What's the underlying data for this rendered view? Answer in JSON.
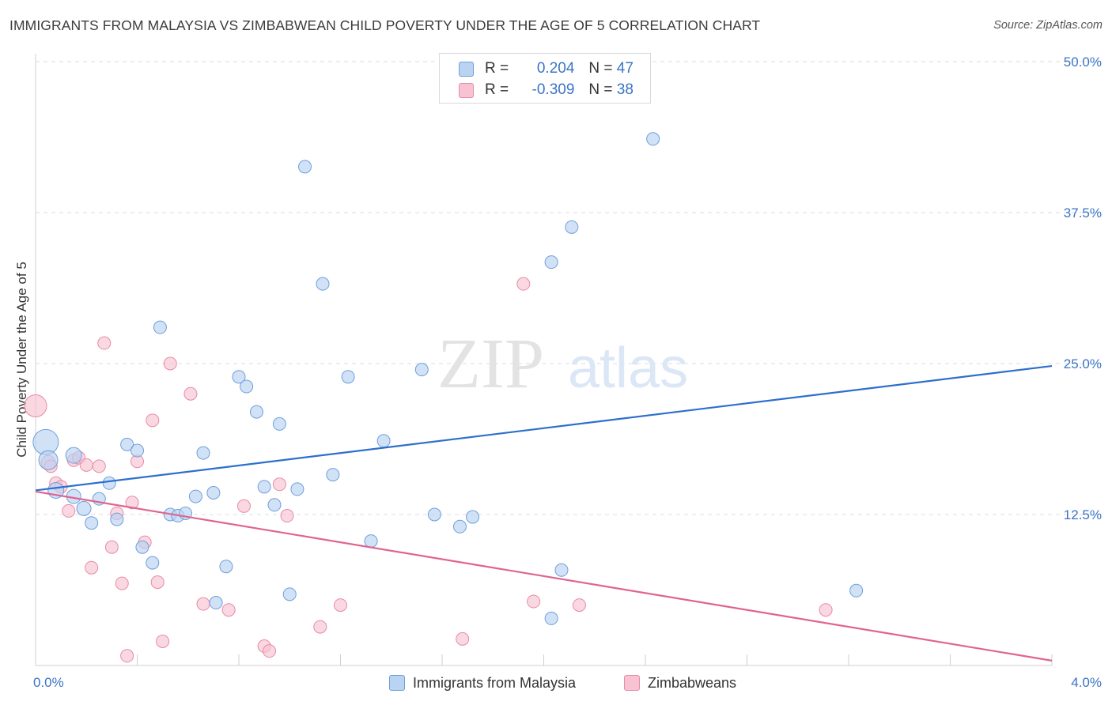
{
  "title": "IMMIGRANTS FROM MALAYSIA VS ZIMBABWEAN CHILD POVERTY UNDER THE AGE OF 5 CORRELATION CHART",
  "source": "Source: ZipAtlas.com",
  "watermark": {
    "zip": "ZIP",
    "atlas": "atlas"
  },
  "legend": {
    "r_label": "R =",
    "n_label": "N =",
    "series": [
      {
        "r": "0.204",
        "n": "47"
      },
      {
        "r": "-0.309",
        "n": "38"
      }
    ]
  },
  "colors": {
    "blue_fill": "#b9d3f3",
    "blue_stroke": "#6d9fdb",
    "blue_line": "#2d6fcc",
    "pink_fill": "#f7c3d3",
    "pink_stroke": "#e88aa8",
    "pink_line": "#e0648f",
    "grid": "#dcdcdc",
    "tick_text": "#3a74c4"
  },
  "chart_data": {
    "type": "scatter",
    "title": "IMMIGRANTS FROM MALAYSIA VS ZIMBABWEAN CHILD POVERTY UNDER THE AGE OF 5 CORRELATION CHART",
    "xlabel": "",
    "ylabel": "Child Poverty Under the Age of 5",
    "xlim": [
      0.0,
      4.0
    ],
    "ylim": [
      0.0,
      50.0
    ],
    "x_tick_labels": [
      "0.0%",
      "4.0%"
    ],
    "y_ticks": [
      12.5,
      25.0,
      37.5,
      50.0
    ],
    "y_tick_labels": [
      "12.5%",
      "25.0%",
      "37.5%",
      "50.0%"
    ],
    "legend_position": "bottom",
    "series": [
      {
        "name": "Immigrants from Malaysia",
        "r": 0.204,
        "n": 47,
        "trend": {
          "x": [
            0.0,
            4.0
          ],
          "y": [
            14.5,
            24.8
          ]
        },
        "points": [
          {
            "x": 0.04,
            "y": 18.5,
            "s": 16
          },
          {
            "x": 0.05,
            "y": 17.0,
            "s": 12
          },
          {
            "x": 0.08,
            "y": 14.5,
            "s": 10
          },
          {
            "x": 0.15,
            "y": 17.4,
            "s": 10
          },
          {
            "x": 0.15,
            "y": 14.0,
            "s": 9
          },
          {
            "x": 0.19,
            "y": 13.0,
            "s": 9
          },
          {
            "x": 0.22,
            "y": 11.8,
            "s": 8
          },
          {
            "x": 0.25,
            "y": 13.8,
            "s": 8
          },
          {
            "x": 0.29,
            "y": 15.1,
            "s": 8
          },
          {
            "x": 0.32,
            "y": 12.1,
            "s": 8
          },
          {
            "x": 0.36,
            "y": 18.3,
            "s": 8
          },
          {
            "x": 0.4,
            "y": 17.8,
            "s": 8
          },
          {
            "x": 0.42,
            "y": 9.8,
            "s": 8
          },
          {
            "x": 0.46,
            "y": 8.5,
            "s": 8
          },
          {
            "x": 0.49,
            "y": 28.0,
            "s": 8
          },
          {
            "x": 0.53,
            "y": 12.5,
            "s": 8
          },
          {
            "x": 0.56,
            "y": 12.4,
            "s": 8
          },
          {
            "x": 0.59,
            "y": 12.6,
            "s": 8
          },
          {
            "x": 0.63,
            "y": 14.0,
            "s": 8
          },
          {
            "x": 0.66,
            "y": 17.6,
            "s": 8
          },
          {
            "x": 0.7,
            "y": 14.3,
            "s": 8
          },
          {
            "x": 0.71,
            "y": 5.2,
            "s": 8
          },
          {
            "x": 0.75,
            "y": 8.2,
            "s": 8
          },
          {
            "x": 0.8,
            "y": 23.9,
            "s": 8
          },
          {
            "x": 0.83,
            "y": 23.1,
            "s": 8
          },
          {
            "x": 0.87,
            "y": 21.0,
            "s": 8
          },
          {
            "x": 0.9,
            "y": 14.8,
            "s": 8
          },
          {
            "x": 0.94,
            "y": 13.3,
            "s": 8
          },
          {
            "x": 0.96,
            "y": 20.0,
            "s": 8
          },
          {
            "x": 1.0,
            "y": 5.9,
            "s": 8
          },
          {
            "x": 1.03,
            "y": 14.6,
            "s": 8
          },
          {
            "x": 1.06,
            "y": 41.3,
            "s": 8
          },
          {
            "x": 1.13,
            "y": 31.6,
            "s": 8
          },
          {
            "x": 1.17,
            "y": 15.8,
            "s": 8
          },
          {
            "x": 1.23,
            "y": 23.9,
            "s": 8
          },
          {
            "x": 1.32,
            "y": 10.3,
            "s": 8
          },
          {
            "x": 1.37,
            "y": 18.6,
            "s": 8
          },
          {
            "x": 1.52,
            "y": 24.5,
            "s": 8
          },
          {
            "x": 1.57,
            "y": 12.5,
            "s": 8
          },
          {
            "x": 1.67,
            "y": 11.5,
            "s": 8
          },
          {
            "x": 1.72,
            "y": 12.3,
            "s": 8
          },
          {
            "x": 2.03,
            "y": 33.4,
            "s": 8
          },
          {
            "x": 2.07,
            "y": 7.9,
            "s": 8
          },
          {
            "x": 2.11,
            "y": 36.3,
            "s": 8
          },
          {
            "x": 2.03,
            "y": 3.9,
            "s": 8
          },
          {
            "x": 2.43,
            "y": 43.6,
            "s": 8
          },
          {
            "x": 3.23,
            "y": 6.2,
            "s": 8
          }
        ]
      },
      {
        "name": "Zimbabweans",
        "r": -0.309,
        "n": 38,
        "trend": {
          "x": [
            0.0,
            4.0
          ],
          "y": [
            14.4,
            0.4
          ]
        },
        "points": [
          {
            "x": 0.0,
            "y": 21.5,
            "s": 14
          },
          {
            "x": 0.05,
            "y": 16.8,
            "s": 9
          },
          {
            "x": 0.06,
            "y": 16.5,
            "s": 8
          },
          {
            "x": 0.08,
            "y": 15.1,
            "s": 8
          },
          {
            "x": 0.1,
            "y": 14.8,
            "s": 8
          },
          {
            "x": 0.13,
            "y": 12.8,
            "s": 8
          },
          {
            "x": 0.15,
            "y": 17.0,
            "s": 8
          },
          {
            "x": 0.17,
            "y": 17.2,
            "s": 8
          },
          {
            "x": 0.2,
            "y": 16.6,
            "s": 8
          },
          {
            "x": 0.22,
            "y": 8.1,
            "s": 8
          },
          {
            "x": 0.25,
            "y": 16.5,
            "s": 8
          },
          {
            "x": 0.27,
            "y": 26.7,
            "s": 8
          },
          {
            "x": 0.3,
            "y": 9.8,
            "s": 8
          },
          {
            "x": 0.32,
            "y": 12.6,
            "s": 8
          },
          {
            "x": 0.34,
            "y": 6.8,
            "s": 8
          },
          {
            "x": 0.36,
            "y": 0.8,
            "s": 8
          },
          {
            "x": 0.38,
            "y": 13.5,
            "s": 8
          },
          {
            "x": 0.4,
            "y": 16.9,
            "s": 8
          },
          {
            "x": 0.43,
            "y": 10.2,
            "s": 8
          },
          {
            "x": 0.46,
            "y": 20.3,
            "s": 8
          },
          {
            "x": 0.48,
            "y": 6.9,
            "s": 8
          },
          {
            "x": 0.5,
            "y": 2.0,
            "s": 8
          },
          {
            "x": 0.53,
            "y": 25.0,
            "s": 8
          },
          {
            "x": 0.61,
            "y": 22.5,
            "s": 8
          },
          {
            "x": 0.66,
            "y": 5.1,
            "s": 8
          },
          {
            "x": 0.76,
            "y": 4.6,
            "s": 8
          },
          {
            "x": 0.82,
            "y": 13.2,
            "s": 8
          },
          {
            "x": 0.9,
            "y": 1.6,
            "s": 8
          },
          {
            "x": 0.92,
            "y": 1.2,
            "s": 8
          },
          {
            "x": 0.96,
            "y": 15.0,
            "s": 8
          },
          {
            "x": 0.99,
            "y": 12.4,
            "s": 8
          },
          {
            "x": 1.12,
            "y": 3.2,
            "s": 8
          },
          {
            "x": 1.2,
            "y": 5.0,
            "s": 8
          },
          {
            "x": 1.68,
            "y": 2.2,
            "s": 8
          },
          {
            "x": 1.92,
            "y": 31.6,
            "s": 8
          },
          {
            "x": 1.96,
            "y": 5.3,
            "s": 8
          },
          {
            "x": 2.14,
            "y": 5.0,
            "s": 8
          },
          {
            "x": 3.11,
            "y": 4.6,
            "s": 8
          }
        ]
      }
    ]
  }
}
